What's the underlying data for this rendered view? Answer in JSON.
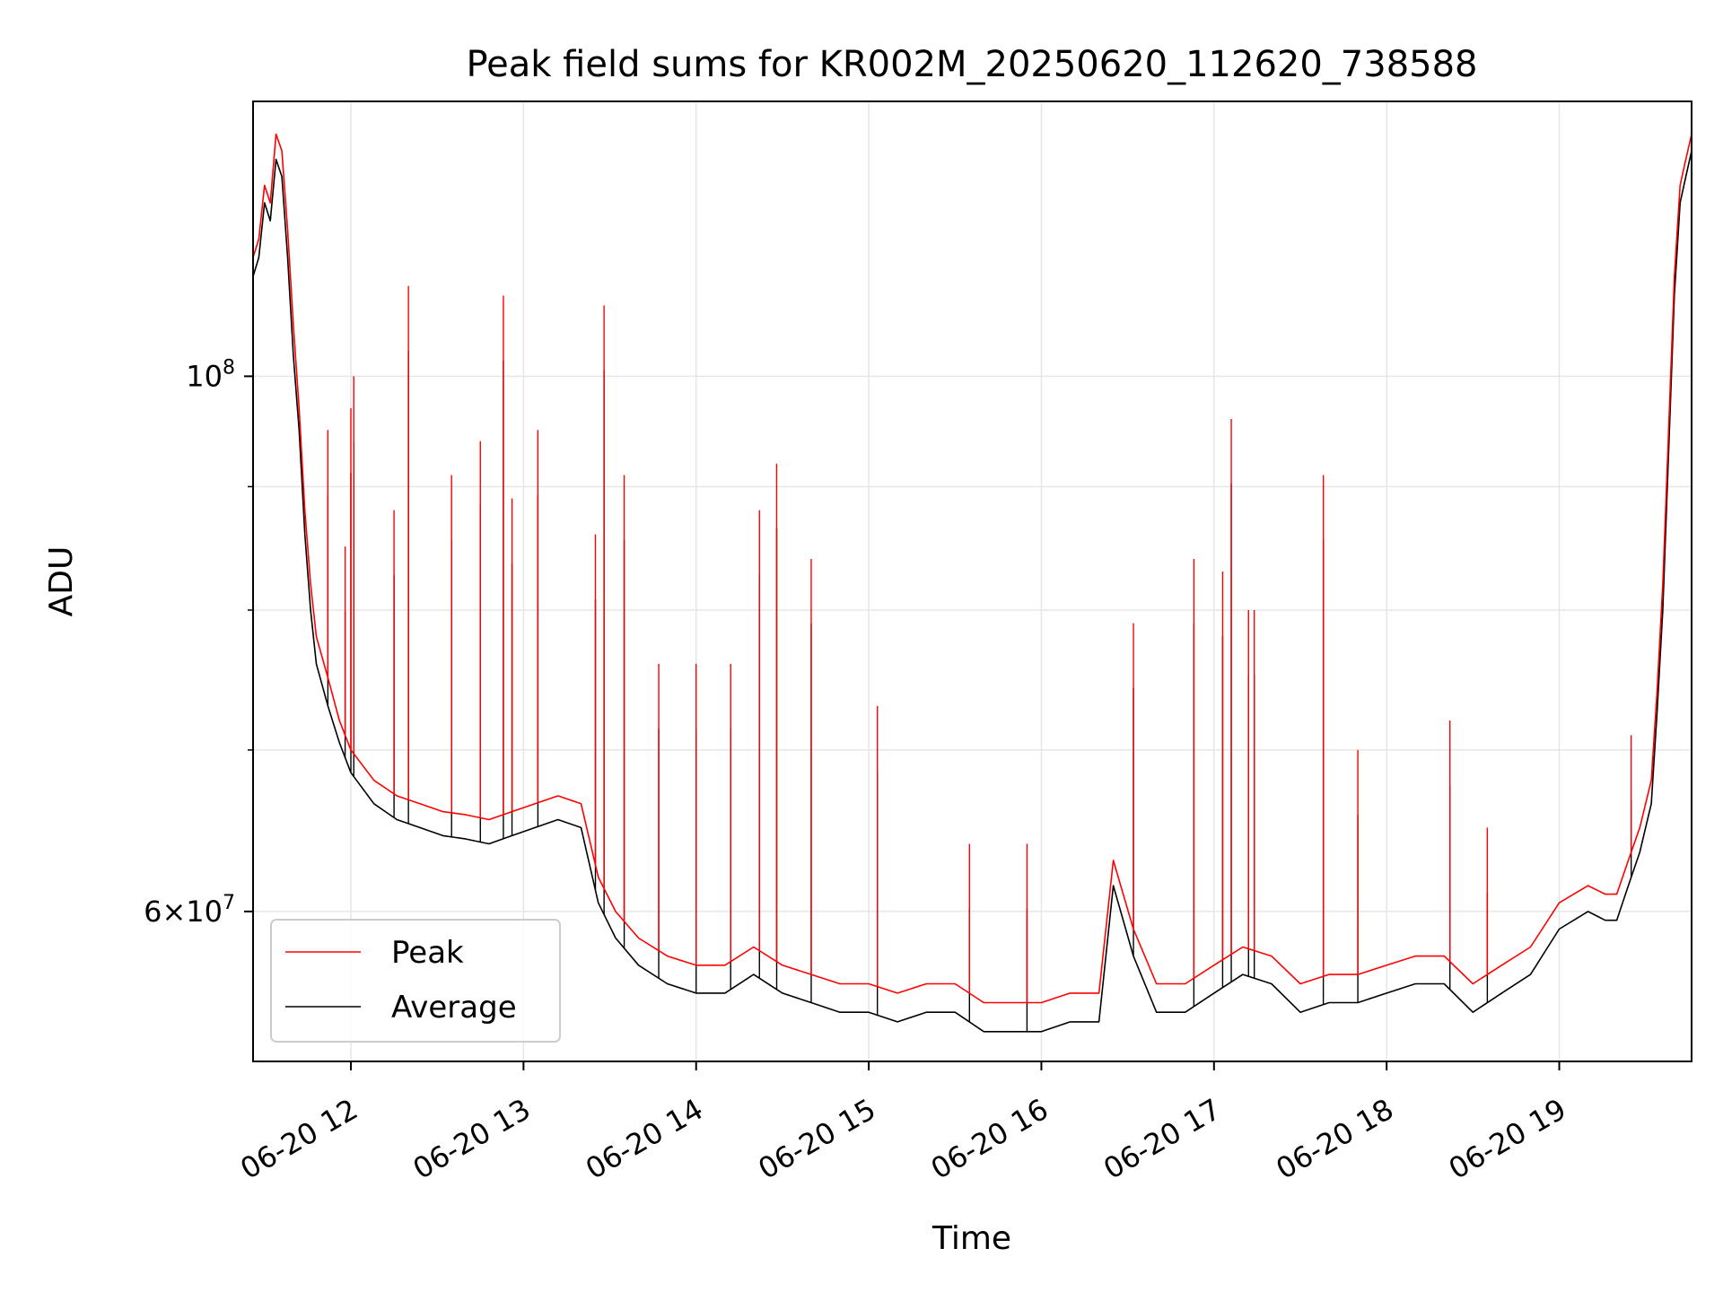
{
  "chart_data": {
    "type": "line",
    "title": "Peak field sums for KR002M_20250620_112620_738588",
    "xlabel": "Time",
    "ylabel": "ADU",
    "yscale": "log",
    "xlim": [
      "2025-06-20 11:26",
      "2025-06-20 19:46"
    ],
    "ylim": [
      52000000,
      130000000
    ],
    "x_ticks": [
      "06-20 12",
      "06-20 13",
      "06-20 14",
      "06-20 15",
      "06-20 16",
      "06-20 17",
      "06-20 18",
      "06-20 19"
    ],
    "y_major_ticks": [
      {
        "value": 100000000,
        "base": "10",
        "exp": "8"
      },
      {
        "value": 60000000,
        "base": "6×10",
        "exp": "7"
      }
    ],
    "y_minor_ticks": [
      70000000,
      80000000,
      90000000
    ],
    "grid": true,
    "legend_position": "lower-left",
    "colors": {
      "peak": "#ff0000",
      "average": "#000000",
      "grid": "#e6e6e6",
      "frame": "#000000"
    },
    "series": [
      {
        "name": "Peak",
        "color": "#ff0000",
        "x": [
          "2025-06-20 11:26",
          "2025-06-20 11:28",
          "2025-06-20 11:30",
          "2025-06-20 11:32",
          "2025-06-20 11:34",
          "2025-06-20 11:36",
          "2025-06-20 11:38",
          "2025-06-20 11:40",
          "2025-06-20 11:42",
          "2025-06-20 11:44",
          "2025-06-20 11:46",
          "2025-06-20 11:48",
          "2025-06-20 11:52",
          "2025-06-20 11:56",
          "2025-06-20 12:00",
          "2025-06-20 12:08",
          "2025-06-20 12:16",
          "2025-06-20 12:24",
          "2025-06-20 12:32",
          "2025-06-20 12:40",
          "2025-06-20 12:48",
          "2025-06-20 12:56",
          "2025-06-20 13:04",
          "2025-06-20 13:12",
          "2025-06-20 13:20",
          "2025-06-20 13:26",
          "2025-06-20 13:32",
          "2025-06-20 13:40",
          "2025-06-20 13:50",
          "2025-06-20 14:00",
          "2025-06-20 14:10",
          "2025-06-20 14:20",
          "2025-06-20 14:30",
          "2025-06-20 14:40",
          "2025-06-20 14:50",
          "2025-06-20 15:00",
          "2025-06-20 15:10",
          "2025-06-20 15:20",
          "2025-06-20 15:30",
          "2025-06-20 15:40",
          "2025-06-20 15:50",
          "2025-06-20 16:00",
          "2025-06-20 16:10",
          "2025-06-20 16:20",
          "2025-06-20 16:25",
          "2025-06-20 16:32",
          "2025-06-20 16:40",
          "2025-06-20 16:50",
          "2025-06-20 17:00",
          "2025-06-20 17:10",
          "2025-06-20 17:20",
          "2025-06-20 17:30",
          "2025-06-20 17:40",
          "2025-06-20 17:50",
          "2025-06-20 18:00",
          "2025-06-20 18:10",
          "2025-06-20 18:20",
          "2025-06-20 18:30",
          "2025-06-20 18:40",
          "2025-06-20 18:50",
          "2025-06-20 19:00",
          "2025-06-20 19:10",
          "2025-06-20 19:16",
          "2025-06-20 19:20",
          "2025-06-20 19:24",
          "2025-06-20 19:28",
          "2025-06-20 19:32",
          "2025-06-20 19:34",
          "2025-06-20 19:36",
          "2025-06-20 19:38",
          "2025-06-20 19:40",
          "2025-06-20 19:42",
          "2025-06-20 19:44",
          "2025-06-20 19:46"
        ],
        "values": [
          112000000,
          114000000,
          120000000,
          118000000,
          126000000,
          124000000,
          115000000,
          105000000,
          97000000,
          88000000,
          82000000,
          78000000,
          75000000,
          72000000,
          70000000,
          68000000,
          67000000,
          66500000,
          66000000,
          65800000,
          65500000,
          66000000,
          66500000,
          67000000,
          66500000,
          62000000,
          60000000,
          58500000,
          57500000,
          57000000,
          57000000,
          58000000,
          57000000,
          56500000,
          56000000,
          56000000,
          55500000,
          56000000,
          56000000,
          55000000,
          55000000,
          55000000,
          55500000,
          55500000,
          63000000,
          59000000,
          56000000,
          56000000,
          57000000,
          58000000,
          57500000,
          56000000,
          56500000,
          56500000,
          57000000,
          57500000,
          57500000,
          56000000,
          57000000,
          58000000,
          60500000,
          61500000,
          61000000,
          61000000,
          63000000,
          65000000,
          68000000,
          74000000,
          82000000,
          95000000,
          110000000,
          120000000,
          123000000,
          126000000
        ]
      },
      {
        "name": "Average",
        "color": "#000000",
        "x": [
          "2025-06-20 11:26",
          "2025-06-20 11:28",
          "2025-06-20 11:30",
          "2025-06-20 11:32",
          "2025-06-20 11:34",
          "2025-06-20 11:36",
          "2025-06-20 11:38",
          "2025-06-20 11:40",
          "2025-06-20 11:42",
          "2025-06-20 11:44",
          "2025-06-20 11:46",
          "2025-06-20 11:48",
          "2025-06-20 11:52",
          "2025-06-20 11:56",
          "2025-06-20 12:00",
          "2025-06-20 12:08",
          "2025-06-20 12:16",
          "2025-06-20 12:24",
          "2025-06-20 12:32",
          "2025-06-20 12:40",
          "2025-06-20 12:48",
          "2025-06-20 12:56",
          "2025-06-20 13:04",
          "2025-06-20 13:12",
          "2025-06-20 13:20",
          "2025-06-20 13:26",
          "2025-06-20 13:32",
          "2025-06-20 13:40",
          "2025-06-20 13:50",
          "2025-06-20 14:00",
          "2025-06-20 14:10",
          "2025-06-20 14:20",
          "2025-06-20 14:30",
          "2025-06-20 14:40",
          "2025-06-20 14:50",
          "2025-06-20 15:00",
          "2025-06-20 15:10",
          "2025-06-20 15:20",
          "2025-06-20 15:30",
          "2025-06-20 15:40",
          "2025-06-20 15:50",
          "2025-06-20 16:00",
          "2025-06-20 16:10",
          "2025-06-20 16:20",
          "2025-06-20 16:25",
          "2025-06-20 16:32",
          "2025-06-20 16:40",
          "2025-06-20 16:50",
          "2025-06-20 17:00",
          "2025-06-20 17:10",
          "2025-06-20 17:20",
          "2025-06-20 17:30",
          "2025-06-20 17:40",
          "2025-06-20 17:50",
          "2025-06-20 18:00",
          "2025-06-20 18:10",
          "2025-06-20 18:20",
          "2025-06-20 18:30",
          "2025-06-20 18:40",
          "2025-06-20 18:50",
          "2025-06-20 19:00",
          "2025-06-20 19:10",
          "2025-06-20 19:16",
          "2025-06-20 19:20",
          "2025-06-20 19:24",
          "2025-06-20 19:28",
          "2025-06-20 19:32",
          "2025-06-20 19:34",
          "2025-06-20 19:36",
          "2025-06-20 19:38",
          "2025-06-20 19:40",
          "2025-06-20 19:42",
          "2025-06-20 19:44",
          "2025-06-20 19:46"
        ],
        "values": [
          110000000,
          112000000,
          118000000,
          116000000,
          123000000,
          121000000,
          112000000,
          102000000,
          95000000,
          86000000,
          80000000,
          76000000,
          73000000,
          70500000,
          68500000,
          66500000,
          65500000,
          65000000,
          64500000,
          64300000,
          64000000,
          64500000,
          65000000,
          65500000,
          65000000,
          60500000,
          58500000,
          57000000,
          56000000,
          55500000,
          55500000,
          56500000,
          55500000,
          55000000,
          54500000,
          54500000,
          54000000,
          54500000,
          54500000,
          53500000,
          53500000,
          53500000,
          54000000,
          54000000,
          61500000,
          57500000,
          54500000,
          54500000,
          55500000,
          56500000,
          56000000,
          54500000,
          55000000,
          55000000,
          55500000,
          56000000,
          56000000,
          54500000,
          55500000,
          56500000,
          59000000,
          60000000,
          59500000,
          59500000,
          61500000,
          63500000,
          66500000,
          72500000,
          80000000,
          93000000,
          108000000,
          118000000,
          121000000,
          124000000
        ]
      }
    ],
    "spikes": [
      {
        "x": "2025-06-20 11:52",
        "value": 95000000
      },
      {
        "x": "2025-06-20 11:58",
        "value": 85000000
      },
      {
        "x": "2025-06-20 12:00",
        "value": 97000000
      },
      {
        "x": "2025-06-20 12:01",
        "value": 100000000
      },
      {
        "x": "2025-06-20 12:15",
        "value": 88000000
      },
      {
        "x": "2025-06-20 12:20",
        "value": 109000000
      },
      {
        "x": "2025-06-20 12:35",
        "value": 91000000
      },
      {
        "x": "2025-06-20 12:45",
        "value": 94000000
      },
      {
        "x": "2025-06-20 12:53",
        "value": 108000000
      },
      {
        "x": "2025-06-20 12:56",
        "value": 89000000
      },
      {
        "x": "2025-06-20 13:05",
        "value": 95000000
      },
      {
        "x": "2025-06-20 13:25",
        "value": 86000000
      },
      {
        "x": "2025-06-20 13:28",
        "value": 107000000
      },
      {
        "x": "2025-06-20 13:35",
        "value": 91000000
      },
      {
        "x": "2025-06-20 13:47",
        "value": 76000000
      },
      {
        "x": "2025-06-20 14:00",
        "value": 76000000
      },
      {
        "x": "2025-06-20 14:12",
        "value": 76000000
      },
      {
        "x": "2025-06-20 14:22",
        "value": 88000000
      },
      {
        "x": "2025-06-20 14:28",
        "value": 92000000
      },
      {
        "x": "2025-06-20 14:40",
        "value": 84000000
      },
      {
        "x": "2025-06-20 15:03",
        "value": 73000000
      },
      {
        "x": "2025-06-20 15:35",
        "value": 64000000
      },
      {
        "x": "2025-06-20 15:55",
        "value": 64000000
      },
      {
        "x": "2025-06-20 16:32",
        "value": 79000000
      },
      {
        "x": "2025-06-20 16:53",
        "value": 84000000
      },
      {
        "x": "2025-06-20 17:03",
        "value": 83000000
      },
      {
        "x": "2025-06-20 17:06",
        "value": 96000000
      },
      {
        "x": "2025-06-20 17:12",
        "value": 80000000
      },
      {
        "x": "2025-06-20 17:14",
        "value": 80000000
      },
      {
        "x": "2025-06-20 17:38",
        "value": 91000000
      },
      {
        "x": "2025-06-20 17:50",
        "value": 70000000
      },
      {
        "x": "2025-06-20 18:22",
        "value": 72000000
      },
      {
        "x": "2025-06-20 18:35",
        "value": 65000000
      },
      {
        "x": "2025-06-20 19:25",
        "value": 71000000
      }
    ]
  }
}
